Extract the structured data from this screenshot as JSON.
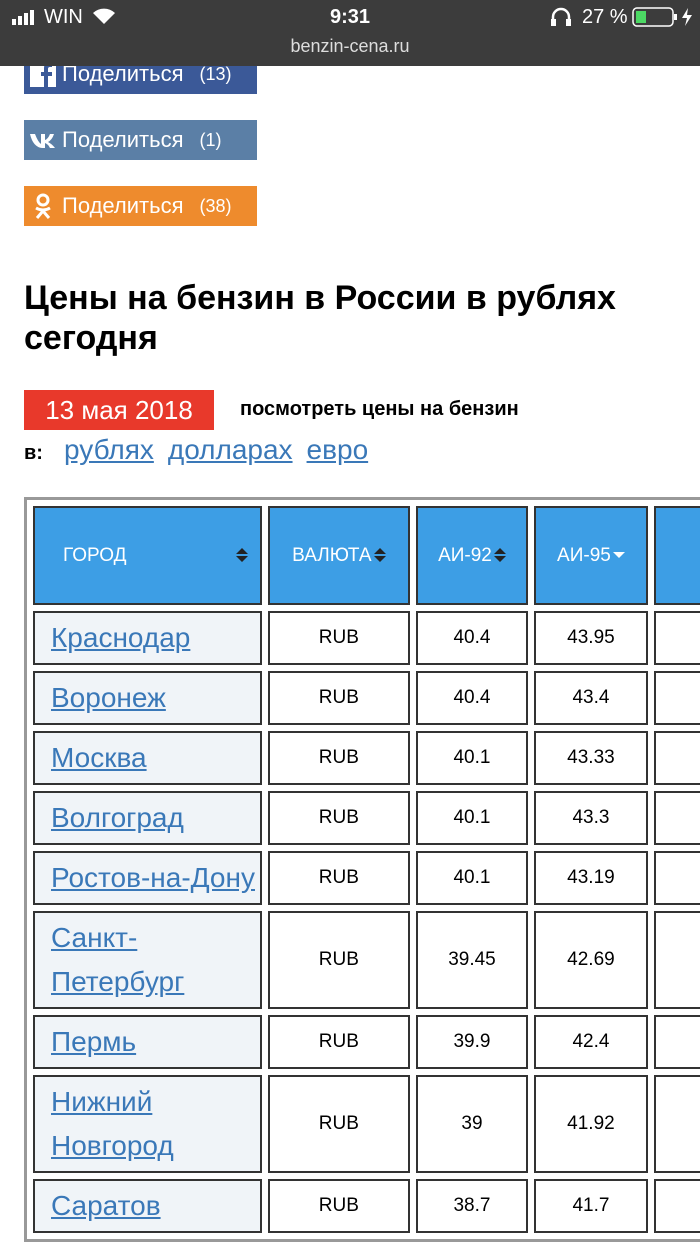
{
  "status_bar": {
    "carrier": "WIN",
    "time": "9:31",
    "battery": "27 %",
    "url": "benzin-cena.ru"
  },
  "share_buttons": [
    {
      "label": "Поделиться",
      "count": "(13)"
    },
    {
      "label": "Поделиться",
      "count": "(1)"
    },
    {
      "label": "Поделиться",
      "count": "(38)"
    }
  ],
  "heading": "Цены на бензин в России в рублях сегодня",
  "date": "13 мая 2018",
  "view_prices": "посмотреть цены на бензин",
  "in_label": "в:",
  "currency_links": [
    "рублях",
    "долларах",
    "евро"
  ],
  "table": {
    "headers": [
      "ГОРОД",
      "ВАЛЮТА",
      "АИ-92",
      "АИ-95"
    ],
    "rows": [
      [
        "Краснодар",
        "RUB",
        "40.4",
        "43.95"
      ],
      [
        "Воронеж",
        "RUB",
        "40.4",
        "43.4"
      ],
      [
        "Москва",
        "RUB",
        "40.1",
        "43.33"
      ],
      [
        "Волгоград",
        "RUB",
        "40.1",
        "43.3"
      ],
      [
        "Ростов-на-Дону",
        "RUB",
        "40.1",
        "43.19"
      ],
      [
        "Санкт-Петербург",
        "RUB",
        "39.45",
        "42.69"
      ],
      [
        "Пермь",
        "RUB",
        "39.9",
        "42.4"
      ],
      [
        "Нижний Новгород",
        "RUB",
        "39",
        "41.92"
      ],
      [
        "Саратов",
        "RUB",
        "38.7",
        "41.7"
      ]
    ]
  }
}
